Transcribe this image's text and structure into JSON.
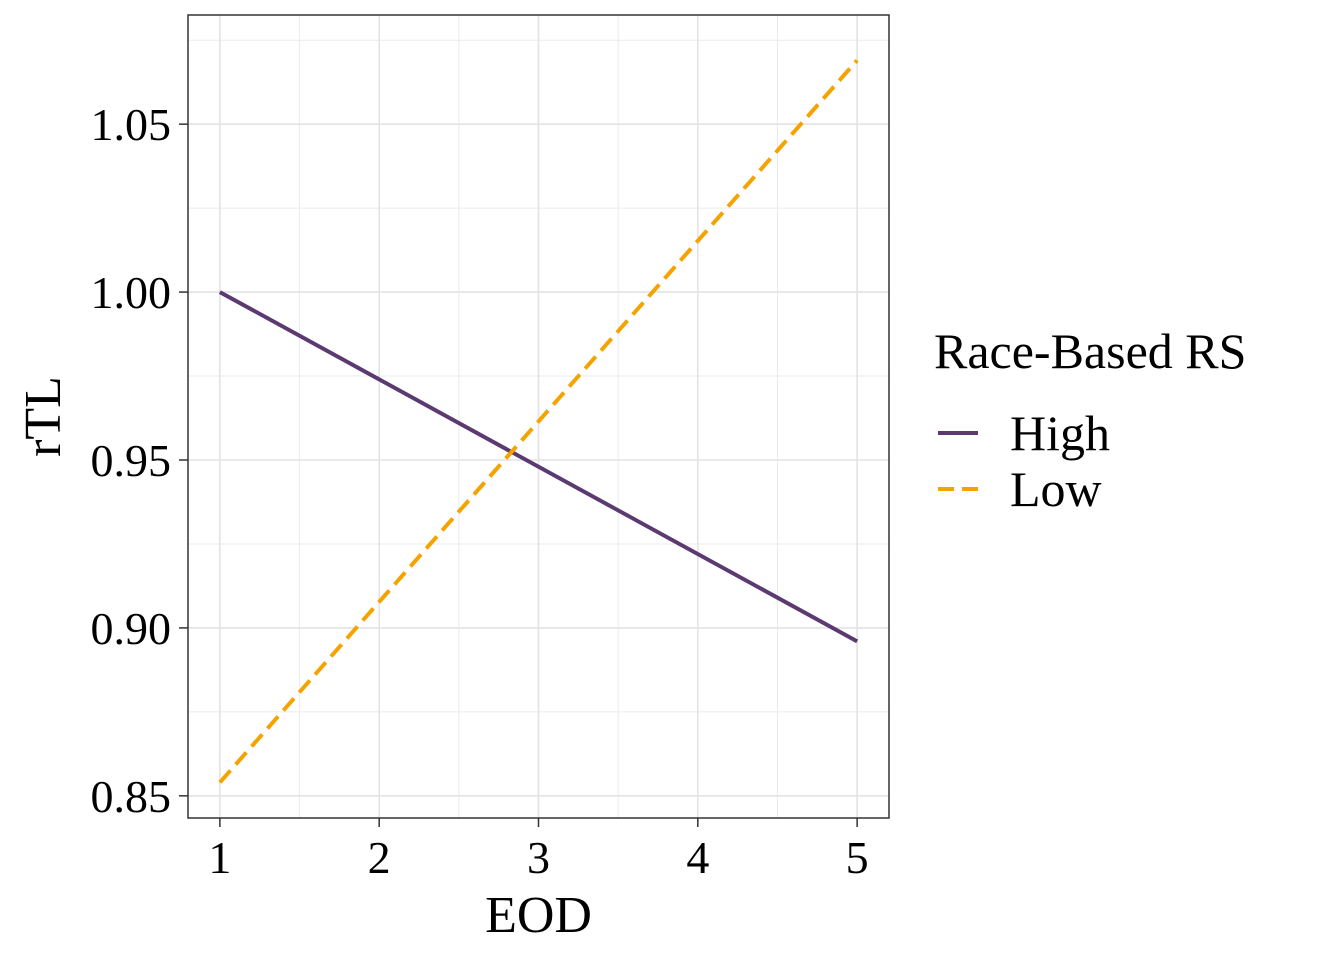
{
  "chart_data": {
    "type": "line",
    "title": "",
    "xlabel": "EOD",
    "ylabel": "rTL",
    "xlim": [
      0.8,
      5.2
    ],
    "ylim": [
      0.8434,
      1.0825
    ],
    "x_ticks": [
      1,
      2,
      3,
      4,
      5
    ],
    "x_tick_labels": [
      "1",
      "2",
      "3",
      "4",
      "5"
    ],
    "y_ticks": [
      0.85,
      0.9,
      0.95,
      1.0,
      1.05
    ],
    "y_tick_labels": [
      "0.85",
      "0.90",
      "0.95",
      "1.00",
      "1.05"
    ],
    "grid": true,
    "legend": {
      "title": "Race-Based RS",
      "position": "right"
    },
    "series": [
      {
        "name": "High",
        "color": "#5b3a72",
        "dash": "solid",
        "x": [
          1,
          5
        ],
        "y": [
          1.0,
          0.896
        ]
      },
      {
        "name": "Low",
        "color": "#f5a300",
        "dash": "dashed",
        "x": [
          1,
          5
        ],
        "y": [
          0.854,
          1.069
        ]
      }
    ]
  }
}
